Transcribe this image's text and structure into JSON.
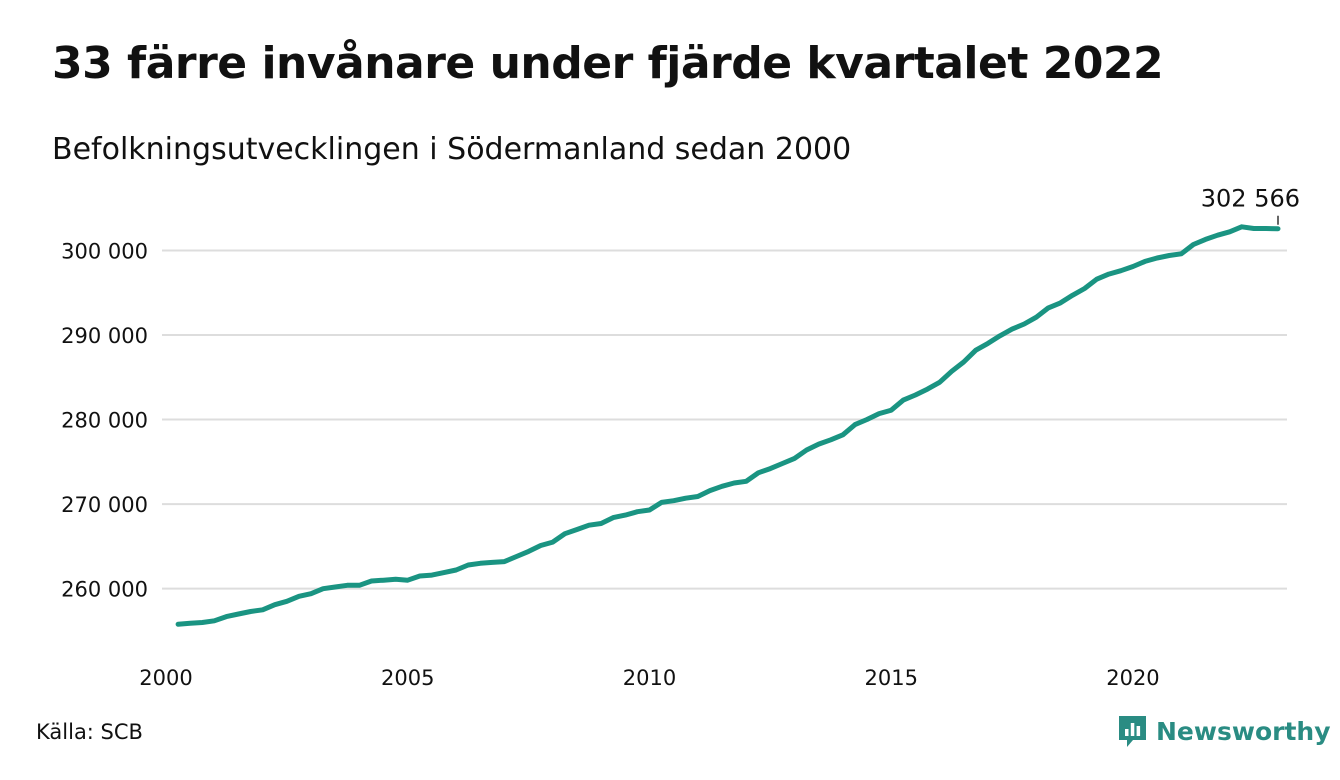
{
  "header": {
    "title": "33 färre invånare under fjärde kvartalet 2022",
    "subtitle": "Befolkningsutvecklingen i Södermanland sedan 2000"
  },
  "footer": {
    "source": "Källa: SCB",
    "brand": "Newsworthy",
    "brand_icon": "bar-chart-speech-bubble-icon"
  },
  "colors": {
    "line": "#1a9482",
    "grid": "#dddddd",
    "brand": "#2a8c83"
  },
  "chart_data": {
    "type": "line",
    "title": "33 färre invånare under fjärde kvartalet 2022",
    "subtitle": "Befolkningsutvecklingen i Södermanland sedan 2000",
    "xlabel": "",
    "ylabel": "",
    "xlim": [
      2000,
      2023
    ],
    "ylim": [
      254400,
      303600
    ],
    "x_ticks": [
      2000,
      2005,
      2010,
      2015,
      2020
    ],
    "x_tick_labels": [
      "2000",
      "2005",
      "2010",
      "2015",
      "2020"
    ],
    "y_ticks": [
      260000,
      270000,
      280000,
      290000,
      300000
    ],
    "y_tick_labels": [
      "260 000",
      "270 000",
      "280 000",
      "290 000",
      "300 000"
    ],
    "grid": "horizontal",
    "end_label": "302 566",
    "series": [
      {
        "frequency": "quarterly",
        "x": [
          2000.25,
          2000.5,
          2000.75,
          2001.0,
          2001.25,
          2001.5,
          2001.75,
          2002.0,
          2002.25,
          2002.5,
          2002.75,
          2003.0,
          2003.25,
          2003.5,
          2003.75,
          2004.0,
          2004.25,
          2004.5,
          2004.75,
          2005.0,
          2005.25,
          2005.5,
          2005.75,
          2006.0,
          2006.25,
          2006.5,
          2006.75,
          2007.0,
          2007.25,
          2007.5,
          2007.75,
          2008.0,
          2008.25,
          2008.5,
          2008.75,
          2009.0,
          2009.25,
          2009.5,
          2009.75,
          2010.0,
          2010.25,
          2010.5,
          2010.75,
          2011.0,
          2011.25,
          2011.5,
          2011.75,
          2012.0,
          2012.25,
          2012.5,
          2012.75,
          2013.0,
          2013.25,
          2013.5,
          2013.75,
          2014.0,
          2014.25,
          2014.5,
          2014.75,
          2015.0,
          2015.25,
          2015.5,
          2015.75,
          2016.0,
          2016.25,
          2016.5,
          2016.75,
          2017.0,
          2017.25,
          2017.5,
          2017.75,
          2018.0,
          2018.25,
          2018.5,
          2018.75,
          2019.0,
          2019.25,
          2019.5,
          2019.75,
          2020.0,
          2020.25,
          2020.5,
          2020.75,
          2021.0,
          2021.25,
          2021.5,
          2021.75,
          2022.0,
          2022.25,
          2022.5,
          2022.75,
          2023.0
        ],
        "values": [
          255800,
          255900,
          256000,
          256200,
          256700,
          257000,
          257300,
          257500,
          258100,
          258500,
          259100,
          259400,
          260000,
          260200,
          260400,
          260400,
          260900,
          261000,
          261100,
          261000,
          261500,
          261600,
          261900,
          262200,
          262800,
          263000,
          263100,
          263200,
          263800,
          264400,
          265100,
          265500,
          266500,
          267000,
          267500,
          267700,
          268400,
          268700,
          269100,
          269300,
          270200,
          270400,
          270700,
          270900,
          271600,
          272100,
          272500,
          272700,
          273700,
          274200,
          274800,
          275400,
          276400,
          277100,
          277600,
          278200,
          279400,
          280000,
          280700,
          281100,
          282300,
          282900,
          283600,
          284400,
          285700,
          286800,
          288200,
          289000,
          289900,
          290700,
          291300,
          292100,
          293200,
          293800,
          294700,
          295500,
          296600,
          297200,
          297600,
          298100,
          298700,
          299100,
          299400,
          299600,
          300700,
          301300,
          301800,
          302200,
          302800,
          302600,
          302600,
          302566
        ]
      }
    ]
  }
}
